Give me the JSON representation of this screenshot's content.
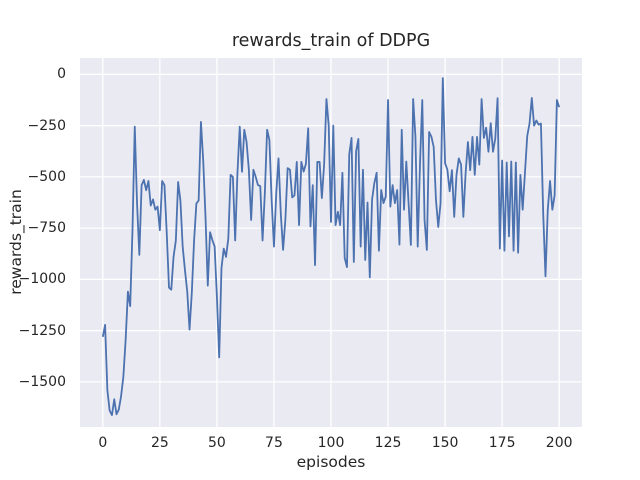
{
  "figure": {
    "title": "rewards_train of DDPG",
    "xlabel": "episodes",
    "ylabel": "rewards_train"
  },
  "chart_data": {
    "type": "line",
    "title": "rewards_train of DDPG",
    "xlabel": "episodes",
    "ylabel": "rewards_train",
    "x_start": 0,
    "x_step": 1,
    "xlim": [
      -10,
      210
    ],
    "ylim": [
      -1720,
      80
    ],
    "xticks": [
      0,
      25,
      50,
      75,
      100,
      125,
      150,
      175,
      200
    ],
    "yticks": [
      0,
      -250,
      -500,
      -750,
      -1000,
      -1250,
      -1500
    ],
    "grid": true,
    "legend": false,
    "line_color": "#4c72b0",
    "axes_background": "#eaeaf2",
    "grid_color": "#ffffff",
    "text_color": "#262626",
    "series": [
      {
        "name": "rewards_train",
        "values": [
          -1280,
          -1222,
          -1540,
          -1640,
          -1662,
          -1585,
          -1658,
          -1635,
          -1570,
          -1475,
          -1295,
          -1060,
          -1130,
          -760,
          -255,
          -630,
          -880,
          -540,
          -515,
          -565,
          -520,
          -640,
          -610,
          -660,
          -645,
          -760,
          -520,
          -540,
          -770,
          -1040,
          -1050,
          -890,
          -810,
          -525,
          -615,
          -840,
          -955,
          -1060,
          -1245,
          -1065,
          -810,
          -630,
          -615,
          -232,
          -420,
          -695,
          -1030,
          -770,
          -808,
          -840,
          -1085,
          -1380,
          -945,
          -850,
          -890,
          -800,
          -490,
          -500,
          -810,
          -480,
          -255,
          -475,
          -270,
          -330,
          -465,
          -710,
          -465,
          -500,
          -540,
          -545,
          -810,
          -580,
          -270,
          -320,
          -615,
          -840,
          -580,
          -410,
          -680,
          -856,
          -710,
          -457,
          -465,
          -600,
          -590,
          -427,
          -735,
          -427,
          -474,
          -437,
          -263,
          -742,
          -540,
          -930,
          -427,
          -427,
          -603,
          -437,
          -120,
          -250,
          -720,
          -250,
          -735,
          -670,
          -735,
          -480,
          -895,
          -940,
          -390,
          -310,
          -915,
          -375,
          -315,
          -840,
          -465,
          -905,
          -625,
          -990,
          -610,
          -530,
          -480,
          -860,
          -564,
          -628,
          -596,
          -125,
          -645,
          -540,
          -628,
          -564,
          -830,
          -270,
          -660,
          -425,
          -628,
          -832,
          -120,
          -304,
          -840,
          -437,
          -125,
          -710,
          -856,
          -281,
          -304,
          -354,
          -612,
          -744,
          -630,
          -18,
          -433,
          -465,
          -570,
          -467,
          -695,
          -490,
          -410,
          -440,
          -695,
          -480,
          -330,
          -467,
          -305,
          -490,
          -305,
          -440,
          -120,
          -310,
          -260,
          -377,
          -238,
          -377,
          -312,
          -116,
          -850,
          -420,
          -860,
          -430,
          -790,
          -425,
          -860,
          -430,
          -870,
          -490,
          -660,
          -480,
          -300,
          -240,
          -115,
          -250,
          -225,
          -245,
          -240,
          -680,
          -985,
          -660,
          -520,
          -660,
          -590,
          -125,
          -160
        ]
      }
    ]
  }
}
